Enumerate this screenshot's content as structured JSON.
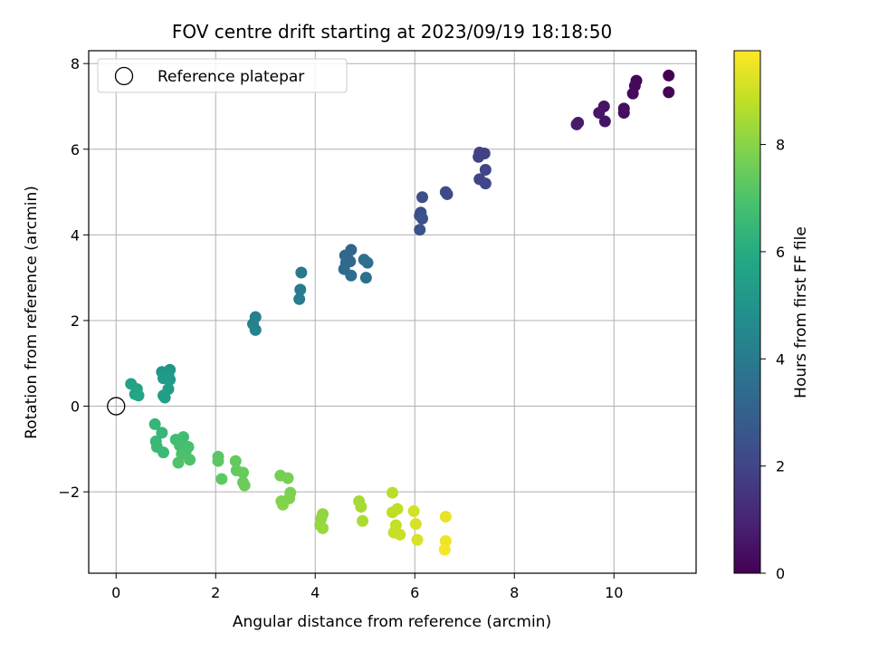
{
  "chart_data": {
    "type": "scatter",
    "title": "FOV centre drift starting at 2023/09/19 18:18:50",
    "xlabel": "Angular distance from reference (arcmin)",
    "ylabel": "Rotation from reference (arcmin)",
    "xlim": [
      -0.55,
      11.65
    ],
    "ylim": [
      -3.9,
      8.3
    ],
    "xticks": [
      0,
      2,
      4,
      6,
      8,
      10
    ],
    "yticks": [
      -2,
      0,
      2,
      4,
      6,
      8
    ],
    "xtick_labels": [
      "0",
      "2",
      "4",
      "6",
      "8",
      "10"
    ],
    "ytick_labels": [
      "−2",
      "0",
      "2",
      "4",
      "6",
      "8"
    ],
    "grid": true,
    "legend": {
      "placement": "top-left",
      "entries": [
        "Reference platepar"
      ]
    },
    "reference_point": {
      "x": 0,
      "y": 0,
      "marker": "open-circle"
    },
    "colormap": "viridis",
    "colorbar": {
      "label": "Hours from first FF file",
      "range": [
        0,
        9.75
      ],
      "ticks": [
        0,
        2,
        4,
        6,
        8
      ],
      "tick_labels": [
        "0",
        "2",
        "4",
        "6",
        "8"
      ]
    },
    "series": [
      {
        "points": [
          [
            11.1,
            7.72,
            0.0
          ],
          [
            11.1,
            7.33,
            0.05
          ],
          [
            10.45,
            7.6,
            0.15
          ],
          [
            10.42,
            7.48,
            0.2
          ],
          [
            10.38,
            7.3,
            0.25
          ],
          [
            10.2,
            6.95,
            0.35
          ],
          [
            10.2,
            6.85,
            0.4
          ],
          [
            9.8,
            7.0,
            0.5
          ],
          [
            9.82,
            6.65,
            0.55
          ],
          [
            9.7,
            6.85,
            0.6
          ],
          [
            9.28,
            6.62,
            0.7
          ],
          [
            9.25,
            6.58,
            0.75
          ],
          [
            7.3,
            5.92,
            1.8
          ],
          [
            7.4,
            5.9,
            1.85
          ],
          [
            7.28,
            5.82,
            1.9
          ],
          [
            7.42,
            5.52,
            1.95
          ],
          [
            7.3,
            5.3,
            2.0
          ],
          [
            7.42,
            5.2,
            2.05
          ],
          [
            6.62,
            5.0,
            2.15
          ],
          [
            6.65,
            4.95,
            2.2
          ],
          [
            6.15,
            4.88,
            2.3
          ],
          [
            6.12,
            4.52,
            2.35
          ],
          [
            6.1,
            4.45,
            2.4
          ],
          [
            6.15,
            4.38,
            2.45
          ],
          [
            6.1,
            4.12,
            2.5
          ],
          [
            4.72,
            3.65,
            3.2
          ],
          [
            4.6,
            3.52,
            3.25
          ],
          [
            4.65,
            3.45,
            3.3
          ],
          [
            4.62,
            3.35,
            3.35
          ],
          [
            4.7,
            3.38,
            3.3
          ],
          [
            4.58,
            3.2,
            3.4
          ],
          [
            4.72,
            3.05,
            3.45
          ],
          [
            4.98,
            3.42,
            3.5
          ],
          [
            5.05,
            3.35,
            3.55
          ],
          [
            5.02,
            3.0,
            3.6
          ],
          [
            3.72,
            3.12,
            3.9
          ],
          [
            3.7,
            2.72,
            4.0
          ],
          [
            3.68,
            2.5,
            4.05
          ],
          [
            2.8,
            2.08,
            4.2
          ],
          [
            2.75,
            1.92,
            4.25
          ],
          [
            2.8,
            1.78,
            4.3
          ],
          [
            1.08,
            0.85,
            5.1
          ],
          [
            0.92,
            0.8,
            5.15
          ],
          [
            1.05,
            0.72,
            5.2
          ],
          [
            0.95,
            0.65,
            5.25
          ],
          [
            1.08,
            0.62,
            5.3
          ],
          [
            1.05,
            0.4,
            5.35
          ],
          [
            0.95,
            0.25,
            5.4
          ],
          [
            0.98,
            0.2,
            5.45
          ],
          [
            0.3,
            0.52,
            5.6
          ],
          [
            0.42,
            0.4,
            5.65
          ],
          [
            0.38,
            0.28,
            5.7
          ],
          [
            0.45,
            0.25,
            5.75
          ],
          [
            0.78,
            -0.42,
            6.4
          ],
          [
            0.92,
            -0.62,
            6.45
          ],
          [
            0.8,
            -0.82,
            6.5
          ],
          [
            0.82,
            -0.95,
            6.55
          ],
          [
            0.95,
            -1.08,
            6.6
          ],
          [
            1.2,
            -0.78,
            6.7
          ],
          [
            1.35,
            -0.72,
            6.75
          ],
          [
            1.28,
            -0.92,
            6.8
          ],
          [
            1.45,
            -0.95,
            6.85
          ],
          [
            1.4,
            -1.05,
            6.9
          ],
          [
            1.32,
            -1.12,
            6.95
          ],
          [
            1.48,
            -1.25,
            7.0
          ],
          [
            1.25,
            -1.32,
            7.05
          ],
          [
            2.05,
            -1.18,
            7.2
          ],
          [
            2.05,
            -1.28,
            7.25
          ],
          [
            2.12,
            -1.7,
            7.3
          ],
          [
            2.4,
            -1.28,
            7.35
          ],
          [
            2.42,
            -1.5,
            7.4
          ],
          [
            2.55,
            -1.55,
            7.45
          ],
          [
            2.55,
            -1.78,
            7.5
          ],
          [
            2.58,
            -1.85,
            7.55
          ],
          [
            3.3,
            -1.62,
            7.7
          ],
          [
            3.45,
            -1.68,
            7.75
          ],
          [
            3.5,
            -2.02,
            7.8
          ],
          [
            3.48,
            -2.15,
            7.85
          ],
          [
            3.32,
            -2.22,
            7.9
          ],
          [
            3.35,
            -2.3,
            7.95
          ],
          [
            4.15,
            -2.52,
            8.1
          ],
          [
            4.12,
            -2.62,
            8.15
          ],
          [
            4.1,
            -2.78,
            8.2
          ],
          [
            4.15,
            -2.85,
            8.25
          ],
          [
            4.88,
            -2.22,
            8.4
          ],
          [
            4.92,
            -2.35,
            8.45
          ],
          [
            4.95,
            -2.68,
            8.5
          ],
          [
            5.55,
            -2.02,
            8.7
          ],
          [
            5.55,
            -2.48,
            8.75
          ],
          [
            5.65,
            -2.4,
            8.8
          ],
          [
            5.62,
            -2.78,
            8.85
          ],
          [
            5.58,
            -2.95,
            8.9
          ],
          [
            5.7,
            -3.0,
            8.95
          ],
          [
            5.98,
            -2.45,
            9.1
          ],
          [
            6.02,
            -2.75,
            9.15
          ],
          [
            6.05,
            -3.12,
            9.2
          ],
          [
            6.62,
            -2.58,
            9.4
          ],
          [
            6.62,
            -3.15,
            9.5
          ],
          [
            6.6,
            -3.35,
            9.6
          ]
        ]
      }
    ]
  }
}
